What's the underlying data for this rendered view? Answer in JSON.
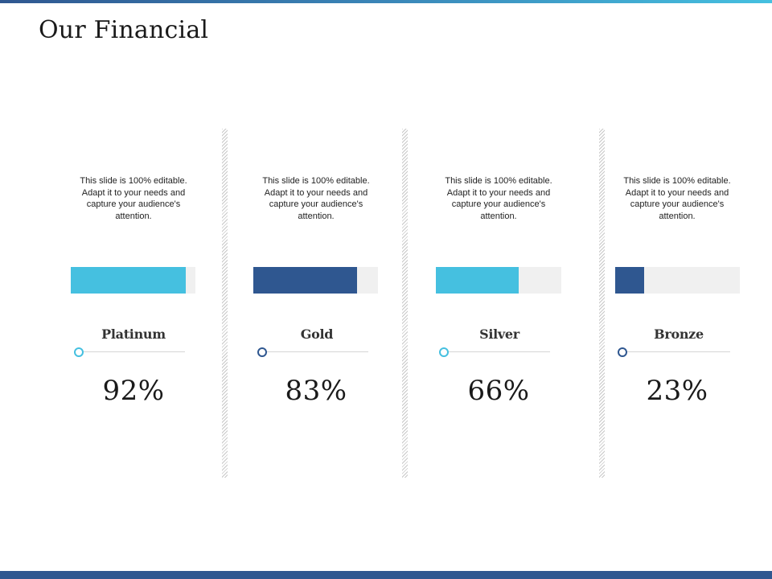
{
  "slide": {
    "title": "Our Financial"
  },
  "colors": {
    "light_blue": "#45c0e0",
    "dark_blue": "#2f5790",
    "track": "#f0f0f0"
  },
  "cards": [
    {
      "description": "This slide is 100% editable. Adapt it to your needs and capture your audience's attention.",
      "label": "Platinum",
      "percent_text": "92%",
      "progress": 0.92,
      "color": "#45c0e0"
    },
    {
      "description": "This slide is 100% editable. Adapt it to your needs and capture your audience's attention.",
      "label": "Gold",
      "percent_text": "83%",
      "progress": 0.83,
      "color": "#2f5790"
    },
    {
      "description": "This slide is 100% editable. Adapt it to your needs and capture your audience's attention.",
      "label": "Silver",
      "percent_text": "66%",
      "progress": 0.66,
      "color": "#45c0e0"
    },
    {
      "description": "This slide is 100% editable. Adapt it to your needs and capture your audience's attention.",
      "label": "Bronze",
      "percent_text": "23%",
      "progress": 0.23,
      "color": "#2f5790"
    }
  ]
}
